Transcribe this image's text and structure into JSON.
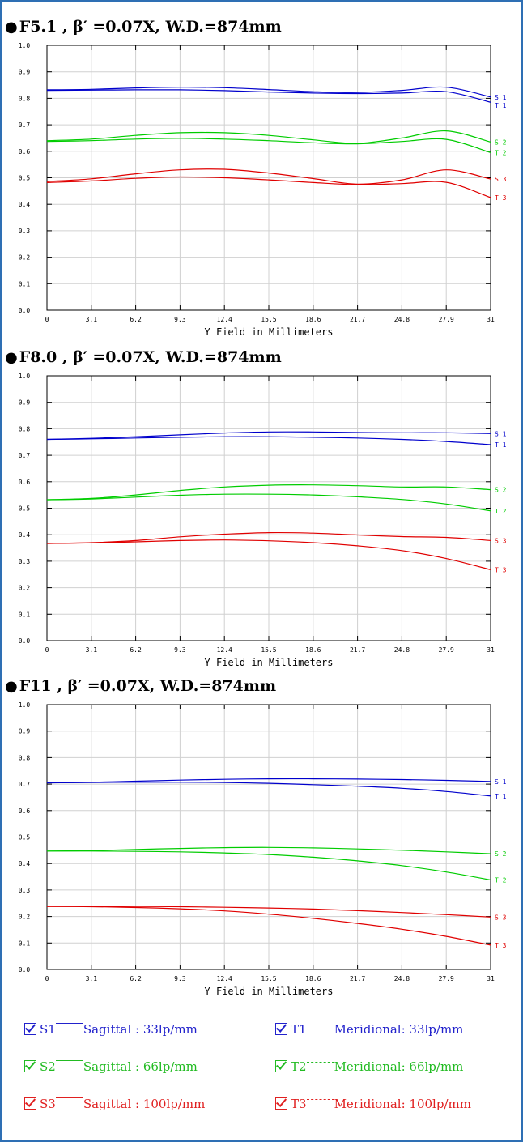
{
  "colors": {
    "frame": "#2e6fb4",
    "grid": "#d0d0d0",
    "s1t1": "#0000cc",
    "s2t2": "#00cc00",
    "s3t3": "#e00000"
  },
  "charts": [
    {
      "title": "F5.1 , β′ =0.07X,  W.D.=874mm"
    },
    {
      "title": "F8.0 , β′ =0.07X,  W.D.=874mm"
    },
    {
      "title": "F11 , β′ =0.07X,  W.D.=874mm"
    }
  ],
  "chart_data": [
    {
      "type": "line",
      "title": "F5.1 , β′ =0.07X,  W.D.=874mm",
      "xlabel": "Y Field in Millimeters",
      "ylabel": "",
      "xlim": [
        0,
        31
      ],
      "ylim": [
        0,
        1.0
      ],
      "xticks": [
        "0",
        "3.1",
        "6.2",
        "9.3",
        "12.4",
        "15.5",
        "18.6",
        "21.7",
        "24.8",
        "27.9",
        "31"
      ],
      "yticks": [
        "0.0",
        "0.1",
        "0.2",
        "0.3",
        "0.4",
        "0.5",
        "0.6",
        "0.7",
        "0.8",
        "0.9",
        "1.0"
      ],
      "grid": true,
      "x": [
        0,
        3.1,
        6.2,
        9.3,
        12.4,
        15.5,
        18.6,
        21.7,
        24.8,
        27.9,
        31
      ],
      "series": [
        {
          "name": "S 1",
          "color": "#0000cc",
          "values": [
            0.832,
            0.834,
            0.839,
            0.842,
            0.84,
            0.833,
            0.825,
            0.822,
            0.83,
            0.842,
            0.805
          ]
        },
        {
          "name": "T 1",
          "color": "#0000cc",
          "values": [
            0.83,
            0.831,
            0.832,
            0.832,
            0.829,
            0.824,
            0.82,
            0.818,
            0.82,
            0.825,
            0.785
          ]
        },
        {
          "name": "S 2",
          "color": "#00cc00",
          "values": [
            0.64,
            0.646,
            0.66,
            0.67,
            0.67,
            0.66,
            0.643,
            0.63,
            0.65,
            0.677,
            0.635
          ]
        },
        {
          "name": "T 2",
          "color": "#00cc00",
          "values": [
            0.637,
            0.64,
            0.646,
            0.649,
            0.646,
            0.64,
            0.632,
            0.628,
            0.637,
            0.645,
            0.595
          ]
        },
        {
          "name": "S 3",
          "color": "#e00000",
          "values": [
            0.486,
            0.496,
            0.515,
            0.53,
            0.532,
            0.518,
            0.497,
            0.476,
            0.492,
            0.53,
            0.495
          ]
        },
        {
          "name": "T 3",
          "color": "#e00000",
          "values": [
            0.482,
            0.488,
            0.498,
            0.503,
            0.5,
            0.492,
            0.482,
            0.474,
            0.478,
            0.483,
            0.425
          ]
        }
      ]
    },
    {
      "type": "line",
      "title": "F8.0 , β′ =0.07X,  W.D.=874mm",
      "xlabel": "Y Field in Millimeters",
      "ylabel": "",
      "xlim": [
        0,
        31
      ],
      "ylim": [
        0,
        1.0
      ],
      "xticks": [
        "0",
        "3.1",
        "6.2",
        "9.3",
        "12.4",
        "15.5",
        "18.6",
        "21.7",
        "24.8",
        "27.9",
        "31"
      ],
      "yticks": [
        "0.0",
        "0.1",
        "0.2",
        "0.3",
        "0.4",
        "0.5",
        "0.6",
        "0.7",
        "0.8",
        "0.9",
        "1.0"
      ],
      "grid": true,
      "x": [
        0,
        3.1,
        6.2,
        9.3,
        12.4,
        15.5,
        18.6,
        21.7,
        24.8,
        27.9,
        31
      ],
      "series": [
        {
          "name": "S 1",
          "color": "#0000cc",
          "values": [
            0.76,
            0.764,
            0.77,
            0.777,
            0.784,
            0.788,
            0.788,
            0.786,
            0.785,
            0.785,
            0.782
          ]
        },
        {
          "name": "T 1",
          "color": "#0000cc",
          "values": [
            0.76,
            0.762,
            0.765,
            0.768,
            0.77,
            0.77,
            0.768,
            0.765,
            0.76,
            0.752,
            0.74
          ]
        },
        {
          "name": "S 2",
          "color": "#00cc00",
          "values": [
            0.532,
            0.537,
            0.55,
            0.567,
            0.58,
            0.587,
            0.588,
            0.585,
            0.58,
            0.58,
            0.57
          ]
        },
        {
          "name": "T 2",
          "color": "#00cc00",
          "values": [
            0.532,
            0.535,
            0.542,
            0.549,
            0.553,
            0.553,
            0.55,
            0.543,
            0.533,
            0.516,
            0.49
          ]
        },
        {
          "name": "S 3",
          "color": "#e00000",
          "values": [
            0.367,
            0.37,
            0.378,
            0.392,
            0.402,
            0.408,
            0.406,
            0.399,
            0.393,
            0.39,
            0.378
          ]
        },
        {
          "name": "T 3",
          "color": "#e00000",
          "values": [
            0.367,
            0.369,
            0.373,
            0.378,
            0.38,
            0.377,
            0.37,
            0.358,
            0.34,
            0.31,
            0.268
          ]
        }
      ]
    },
    {
      "type": "line",
      "title": "F11 , β′ =0.07X,  W.D.=874mm",
      "xlabel": "Y Field in Millimeters",
      "ylabel": "",
      "xlim": [
        0,
        31
      ],
      "ylim": [
        0,
        1.0
      ],
      "xticks": [
        "0",
        "3.1",
        "6.2",
        "9.3",
        "12.4",
        "15.5",
        "18.6",
        "21.7",
        "24.8",
        "27.9",
        "31"
      ],
      "yticks": [
        "0.0",
        "0.1",
        "0.2",
        "0.3",
        "0.4",
        "0.5",
        "0.6",
        "0.7",
        "0.8",
        "0.9",
        "1.0"
      ],
      "grid": true,
      "x": [
        0,
        3.1,
        6.2,
        9.3,
        12.4,
        15.5,
        18.6,
        21.7,
        24.8,
        27.9,
        31
      ],
      "series": [
        {
          "name": "S 1",
          "color": "#0000cc",
          "values": [
            0.705,
            0.707,
            0.711,
            0.715,
            0.718,
            0.72,
            0.72,
            0.719,
            0.717,
            0.714,
            0.71
          ]
        },
        {
          "name": "T 1",
          "color": "#0000cc",
          "values": [
            0.705,
            0.706,
            0.707,
            0.707,
            0.706,
            0.703,
            0.698,
            0.692,
            0.684,
            0.672,
            0.655
          ]
        },
        {
          "name": "S 2",
          "color": "#00cc00",
          "values": [
            0.447,
            0.449,
            0.453,
            0.457,
            0.46,
            0.461,
            0.459,
            0.455,
            0.45,
            0.444,
            0.437
          ]
        },
        {
          "name": "T 2",
          "color": "#00cc00",
          "values": [
            0.447,
            0.447,
            0.446,
            0.444,
            0.44,
            0.434,
            0.424,
            0.41,
            0.392,
            0.368,
            0.338
          ]
        },
        {
          "name": "S 3",
          "color": "#e00000",
          "values": [
            0.238,
            0.238,
            0.238,
            0.237,
            0.235,
            0.232,
            0.228,
            0.222,
            0.215,
            0.207,
            0.198
          ]
        },
        {
          "name": "T 3",
          "color": "#e00000",
          "values": [
            0.238,
            0.237,
            0.234,
            0.229,
            0.221,
            0.209,
            0.193,
            0.174,
            0.152,
            0.125,
            0.092
          ]
        }
      ]
    }
  ],
  "legend": [
    [
      {
        "code": "S1",
        "line": "solid",
        "name": "Sagittal",
        "sep": " : ",
        "freq": "33lp/mm",
        "color": "#2222cc"
      },
      {
        "code": "T1",
        "line": "dash",
        "name": "Meridional",
        "sep": ": ",
        "freq": "33lp/mm",
        "color": "#2222cc"
      }
    ],
    [
      {
        "code": "S2",
        "line": "solid",
        "name": "Sagittal",
        "sep": " : ",
        "freq": "66lp/mm",
        "color": "#22bb22"
      },
      {
        "code": "T2",
        "line": "dash",
        "name": "Meridional",
        "sep": ": ",
        "freq": "66lp/mm",
        "color": "#22bb22"
      }
    ],
    [
      {
        "code": "S3",
        "line": "solid",
        "name": "Sagittal",
        "sep": " : ",
        "freq": "100lp/mm",
        "color": "#e02020"
      },
      {
        "code": "T3",
        "line": "dash",
        "name": "Meridional",
        "sep": ": ",
        "freq": "100lp/mm",
        "color": "#e02020"
      }
    ]
  ]
}
